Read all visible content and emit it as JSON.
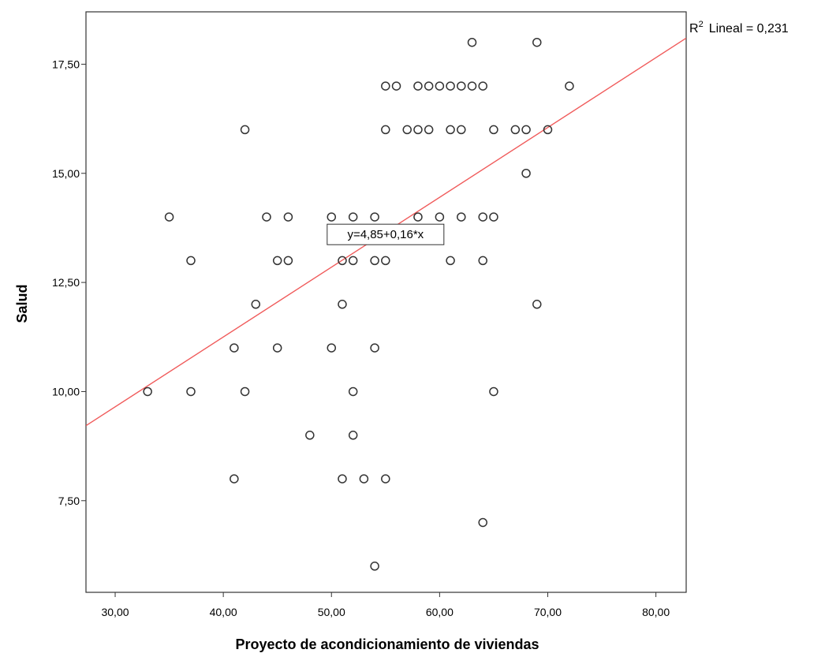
{
  "chart_data": {
    "type": "scatter",
    "title": "",
    "xlabel": "Proyecto de acondicionamiento de viviendas",
    "ylabel": "Salud",
    "xlim": [
      27.3,
      82.8
    ],
    "ylim": [
      5.4,
      18.7
    ],
    "x_ticks": [
      30,
      40,
      50,
      60,
      70,
      80
    ],
    "x_tick_labels": [
      "30,00",
      "40,00",
      "50,00",
      "60,00",
      "70,00",
      "80,00"
    ],
    "y_ticks": [
      7.5,
      10,
      12.5,
      15,
      17.5
    ],
    "y_tick_labels": [
      "7,50",
      "10,00",
      "12,50",
      "15,00",
      "17,50"
    ],
    "grid": false,
    "points": [
      {
        "x": 63,
        "y": 18
      },
      {
        "x": 69,
        "y": 18
      },
      {
        "x": 55,
        "y": 17
      },
      {
        "x": 56,
        "y": 17
      },
      {
        "x": 58,
        "y": 17
      },
      {
        "x": 59,
        "y": 17
      },
      {
        "x": 60,
        "y": 17
      },
      {
        "x": 61,
        "y": 17
      },
      {
        "x": 62,
        "y": 17
      },
      {
        "x": 63,
        "y": 17
      },
      {
        "x": 64,
        "y": 17
      },
      {
        "x": 72,
        "y": 17
      },
      {
        "x": 42,
        "y": 16
      },
      {
        "x": 55,
        "y": 16
      },
      {
        "x": 57,
        "y": 16
      },
      {
        "x": 58,
        "y": 16
      },
      {
        "x": 59,
        "y": 16
      },
      {
        "x": 61,
        "y": 16
      },
      {
        "x": 62,
        "y": 16
      },
      {
        "x": 65,
        "y": 16
      },
      {
        "x": 67,
        "y": 16
      },
      {
        "x": 68,
        "y": 16
      },
      {
        "x": 70,
        "y": 16
      },
      {
        "x": 68,
        "y": 15
      },
      {
        "x": 35,
        "y": 14
      },
      {
        "x": 44,
        "y": 14
      },
      {
        "x": 46,
        "y": 14
      },
      {
        "x": 50,
        "y": 14
      },
      {
        "x": 52,
        "y": 14
      },
      {
        "x": 54,
        "y": 14
      },
      {
        "x": 58,
        "y": 14
      },
      {
        "x": 60,
        "y": 14
      },
      {
        "x": 62,
        "y": 14
      },
      {
        "x": 64,
        "y": 14
      },
      {
        "x": 65,
        "y": 14
      },
      {
        "x": 37,
        "y": 13
      },
      {
        "x": 45,
        "y": 13
      },
      {
        "x": 46,
        "y": 13
      },
      {
        "x": 51,
        "y": 13
      },
      {
        "x": 52,
        "y": 13
      },
      {
        "x": 54,
        "y": 13
      },
      {
        "x": 55,
        "y": 13
      },
      {
        "x": 61,
        "y": 13
      },
      {
        "x": 64,
        "y": 13
      },
      {
        "x": 43,
        "y": 12
      },
      {
        "x": 51,
        "y": 12
      },
      {
        "x": 69,
        "y": 12
      },
      {
        "x": 41,
        "y": 11
      },
      {
        "x": 45,
        "y": 11
      },
      {
        "x": 50,
        "y": 11
      },
      {
        "x": 54,
        "y": 11
      },
      {
        "x": 33,
        "y": 10
      },
      {
        "x": 37,
        "y": 10
      },
      {
        "x": 42,
        "y": 10
      },
      {
        "x": 52,
        "y": 10
      },
      {
        "x": 65,
        "y": 10
      },
      {
        "x": 48,
        "y": 9
      },
      {
        "x": 52,
        "y": 9
      },
      {
        "x": 41,
        "y": 8
      },
      {
        "x": 51,
        "y": 8
      },
      {
        "x": 53,
        "y": 8
      },
      {
        "x": 55,
        "y": 8
      },
      {
        "x": 64,
        "y": 7
      },
      {
        "x": 54,
        "y": 6
      }
    ],
    "fit_line": {
      "type": "linear",
      "intercept": 4.85,
      "slope": 0.16,
      "color": "#f05a5a",
      "equation_label": "y=4,85+0,16*x",
      "equation_label_anchor": {
        "x": 55,
        "y": 13.6
      }
    },
    "r2_label": {
      "prefix": "R",
      "superscript": "2",
      "text": "Lineal = 0,231"
    },
    "marker": {
      "shape": "open-circle",
      "stroke": "#333333"
    }
  }
}
